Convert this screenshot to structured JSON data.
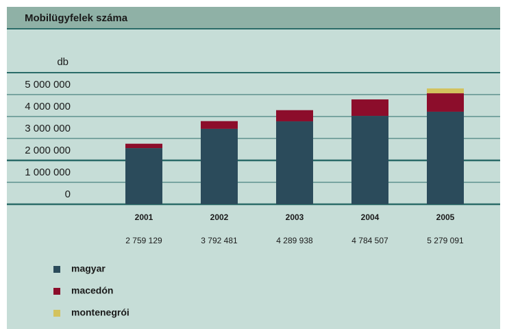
{
  "chart_data": {
    "type": "stacked_bar",
    "title": "Mobilügyfelek száma",
    "unit_label": "db",
    "categories": [
      "2001",
      "2002",
      "2003",
      "2004",
      "2005"
    ],
    "total_labels": [
      "2 759 129",
      "3 792 481",
      "4 289 938",
      "4 784 507",
      "5 279 091"
    ],
    "series": [
      {
        "name": "magyar",
        "color": "#2b4b5b",
        "values": [
          2560000,
          3440000,
          3780000,
          4030000,
          4220000
        ]
      },
      {
        "name": "macedón",
        "color": "#8c0d2b",
        "values": [
          200000,
          350000,
          510000,
          750000,
          840000
        ]
      },
      {
        "name": "montenegrói",
        "color": "#d3c25e",
        "values": [
          0,
          0,
          0,
          0,
          220000
        ]
      }
    ],
    "ylim": [
      0,
      6000000
    ],
    "yticks": [
      0,
      {
        "value": 1000000,
        "label": "1 000 000"
      },
      {
        "value": 2000000,
        "label": "2 000 000"
      },
      {
        "value": 3000000,
        "label": "3 000 000"
      },
      {
        "value": 4000000,
        "label": "4 000 000"
      },
      {
        "value": 5000000,
        "label": "5 000 000"
      }
    ],
    "grid": true
  }
}
